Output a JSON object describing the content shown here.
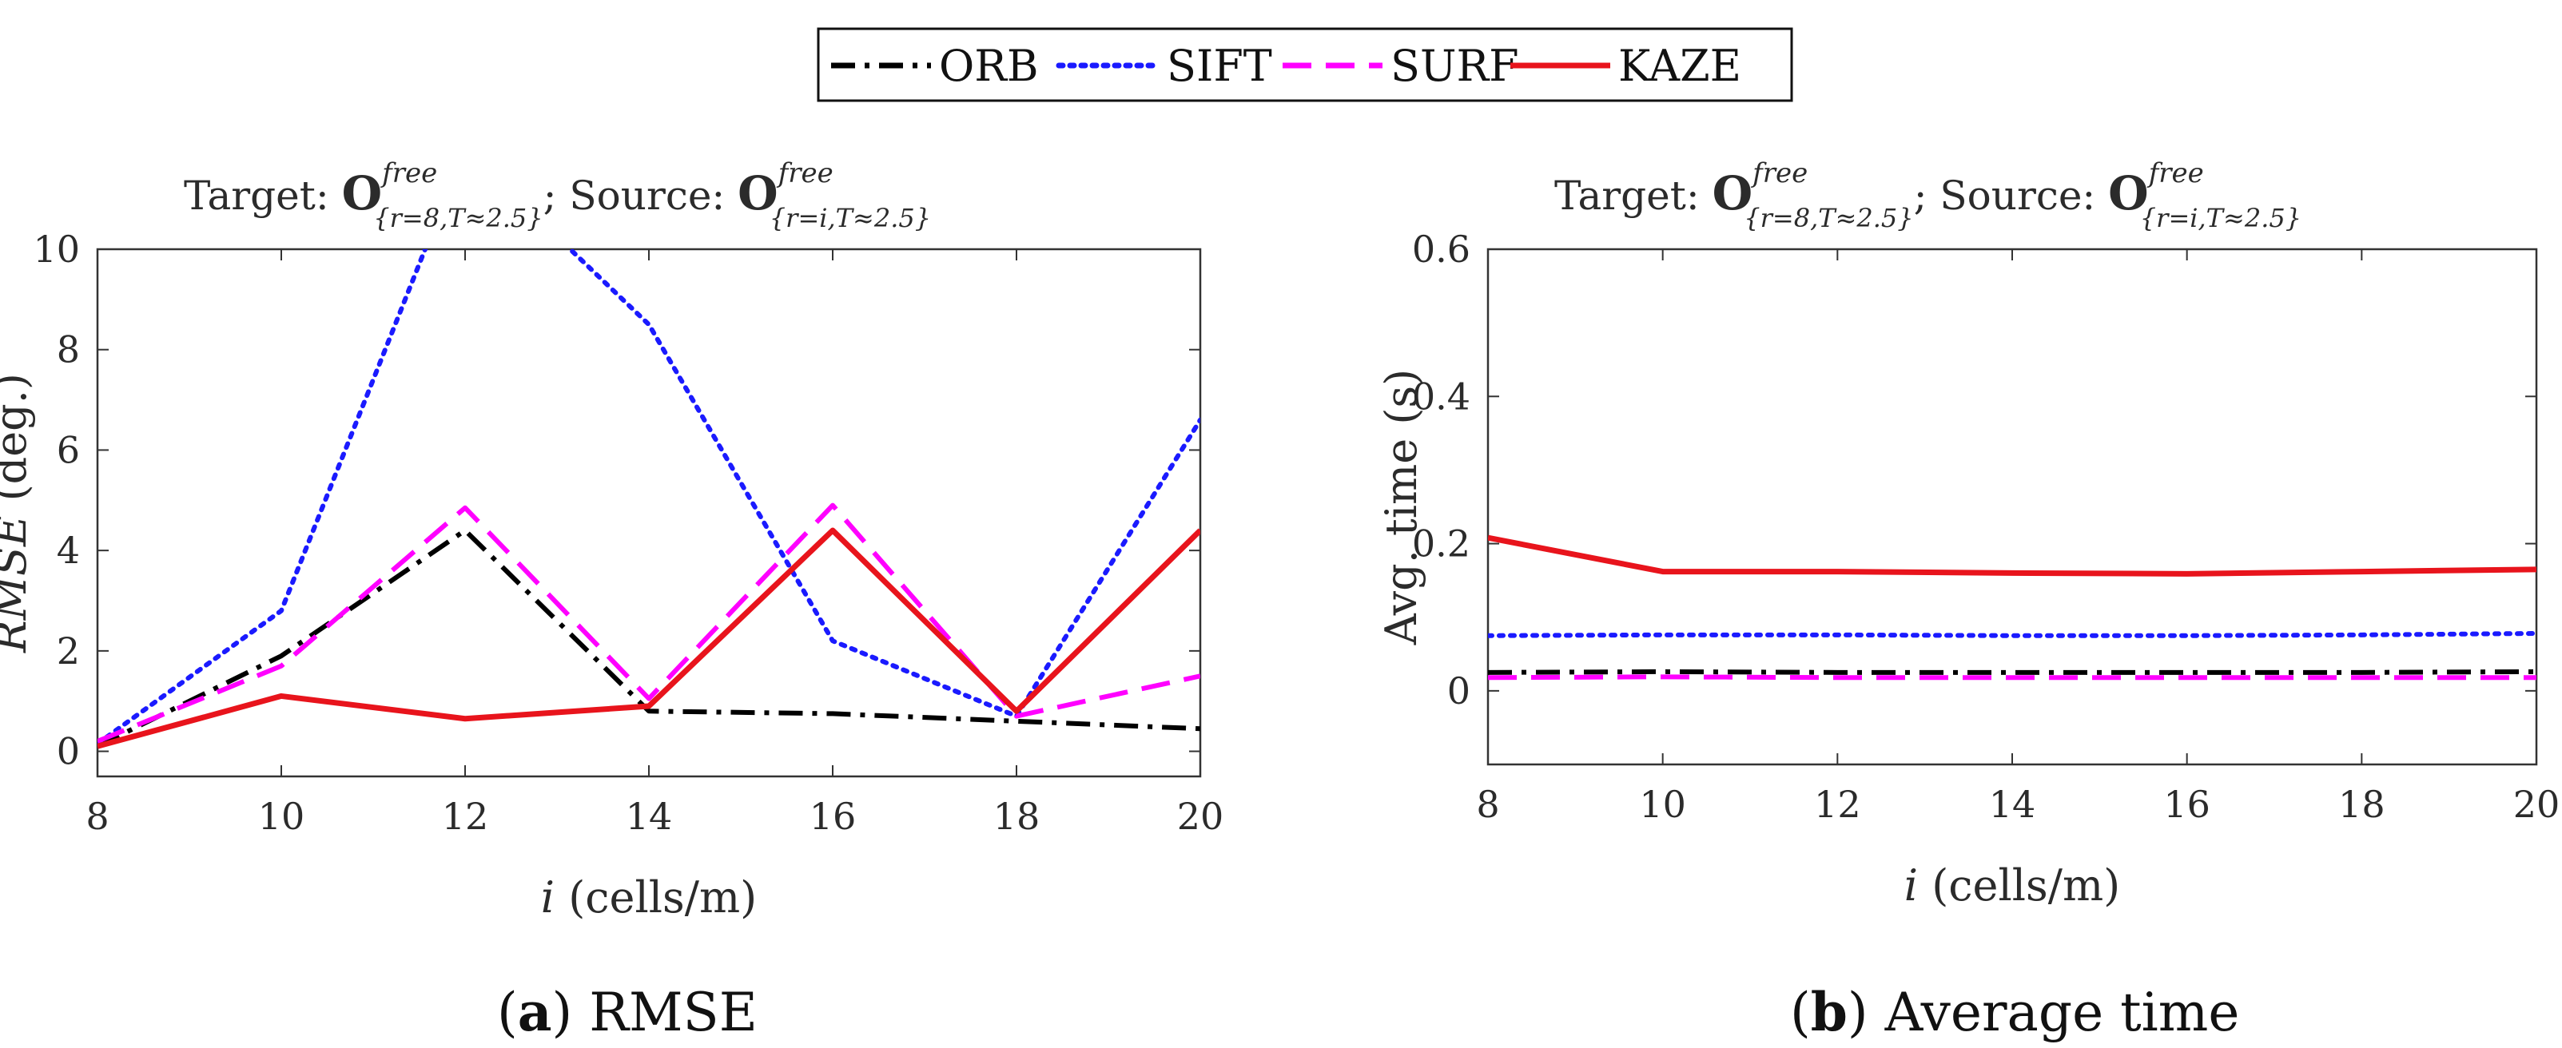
{
  "legend": [
    {
      "name": "ORB",
      "color": "#000000",
      "dash": "dashdot"
    },
    {
      "name": "SIFT",
      "color": "#1a1aff",
      "dash": "dotted"
    },
    {
      "name": "SURF",
      "color": "#ff00ff",
      "dash": "dashed"
    },
    {
      "name": "KAZE",
      "color": "#e8141c",
      "dash": "solid"
    }
  ],
  "panel_title": {
    "target_label": "Target:",
    "source_label": "; Source:",
    "symbol": "O",
    "superscript": "free",
    "target_subscript": "{r=8,T≈2.5}",
    "source_subscript": "{r=i,T≈2.5}"
  },
  "chart_data": [
    {
      "type": "line",
      "caption_letter": "a",
      "caption_open": "(",
      "caption_close": ")",
      "caption_text": " RMSE",
      "xlabel_var": "i",
      "xlabel_units": " (cells/m)",
      "ylabel_var": "RMSE",
      "ylabel_units": " (deg.)",
      "x": [
        8,
        10,
        12,
        14,
        16,
        18,
        20
      ],
      "xlim": [
        8,
        20
      ],
      "ylim": [
        -0.5,
        10
      ],
      "xticks": [
        8,
        10,
        12,
        14,
        16,
        18,
        20
      ],
      "yticks": [
        0,
        2,
        4,
        6,
        8,
        10
      ],
      "grid": false,
      "series": [
        {
          "name": "ORB",
          "values": [
            0.1,
            1.9,
            4.4,
            0.8,
            0.75,
            0.6,
            0.45
          ]
        },
        {
          "name": "SIFT",
          "values": [
            0.15,
            2.8,
            12.0,
            8.5,
            2.2,
            0.7,
            6.6
          ]
        },
        {
          "name": "SURF",
          "values": [
            0.2,
            1.7,
            4.85,
            1.05,
            4.9,
            0.7,
            1.5
          ]
        },
        {
          "name": "KAZE",
          "values": [
            0.1,
            1.1,
            0.65,
            0.9,
            4.4,
            0.8,
            4.4
          ]
        }
      ]
    },
    {
      "type": "line",
      "caption_letter": "b",
      "caption_open": "(",
      "caption_close": ")",
      "caption_text": " Average time",
      "xlabel_var": "i",
      "xlabel_units": " (cells/m)",
      "ylabel_var": "",
      "ylabel_units": "Avg. time (s)",
      "x": [
        8,
        10,
        12,
        14,
        16,
        18,
        20
      ],
      "xlim": [
        8,
        20
      ],
      "ylim": [
        -0.1,
        0.6
      ],
      "xticks": [
        8,
        10,
        12,
        14,
        16,
        18,
        20
      ],
      "yticks": [
        0,
        0.2,
        0.4,
        0.6
      ],
      "grid": false,
      "series": [
        {
          "name": "ORB",
          "values": [
            0.025,
            0.026,
            0.025,
            0.025,
            0.025,
            0.025,
            0.026
          ]
        },
        {
          "name": "SIFT",
          "values": [
            0.075,
            0.076,
            0.076,
            0.075,
            0.075,
            0.076,
            0.078
          ]
        },
        {
          "name": "SURF",
          "values": [
            0.018,
            0.019,
            0.018,
            0.018,
            0.018,
            0.018,
            0.018
          ]
        },
        {
          "name": "KAZE",
          "values": [
            0.208,
            0.162,
            0.162,
            0.16,
            0.159,
            0.162,
            0.165
          ]
        }
      ]
    }
  ]
}
